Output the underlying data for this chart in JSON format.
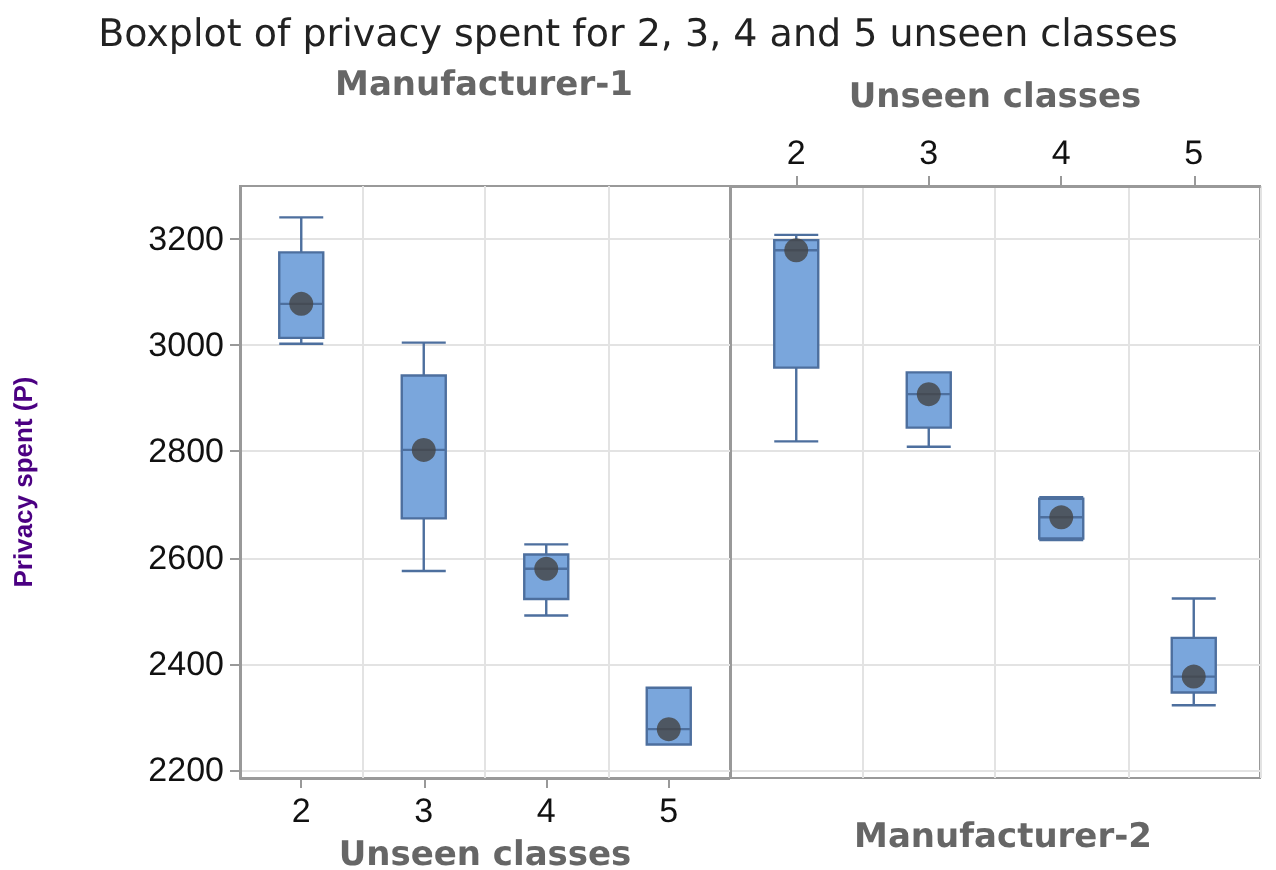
{
  "chart_data": [
    {
      "type": "box",
      "title": "Boxplot of privacy spent for 2, 3, 4 and 5 unseen classes",
      "subtitle": "Manufacturer-1",
      "xlabel": "Unseen classes",
      "ylabel": "Privacy spent (P)",
      "categories": [
        "2",
        "3",
        "4",
        "5"
      ],
      "ylim": [
        2185,
        3300
      ],
      "yticks": [
        2200,
        2400,
        2600,
        2800,
        3000,
        3200
      ],
      "grid": true,
      "series": [
        {
          "color": "#7aa6dc",
          "boxes": [
            {
              "low": 3003,
              "q1": 3014,
              "median": 3078,
              "q3": 3175,
              "high": 3241,
              "mean": 3078
            },
            {
              "low": 2575,
              "q1": 2674,
              "median": 2803,
              "q3": 2943,
              "high": 3005,
              "mean": 2803
            },
            {
              "low": 2491,
              "q1": 2522,
              "median": 2579,
              "q3": 2606,
              "high": 2625,
              "mean": 2579
            },
            {
              "low": 2248,
              "q1": 2248,
              "median": 2277,
              "q3": 2355,
              "high": 2355,
              "mean": 2277
            }
          ]
        }
      ]
    },
    {
      "type": "box",
      "subtitle": "Manufacturer-2",
      "xlabel": "Unseen classes",
      "categories": [
        "2",
        "3",
        "4",
        "5"
      ],
      "ylim": [
        2185,
        3300
      ],
      "yticks": [
        2200,
        2400,
        2600,
        2800,
        3000,
        3200
      ],
      "grid": true,
      "tick_labels": "x",
      "series": [
        {
          "color": "#7aa6dc",
          "boxes": [
            {
              "low": 2819,
              "q1": 2958,
              "median": 3179,
              "q3": 3198,
              "high": 3208,
              "mean": 3179
            },
            {
              "low": 2809,
              "q1": 2845,
              "median": 2908,
              "q3": 2949,
              "high": 2949,
              "mean": 2908
            },
            {
              "low": 2633,
              "q1": 2636,
              "median": 2676,
              "q3": 2711,
              "high": 2714,
              "mean": 2676
            },
            {
              "low": 2322,
              "q1": 2346,
              "median": 2376,
              "q3": 2449,
              "high": 2523,
              "mean": 2376
            }
          ]
        }
      ]
    }
  ]
}
